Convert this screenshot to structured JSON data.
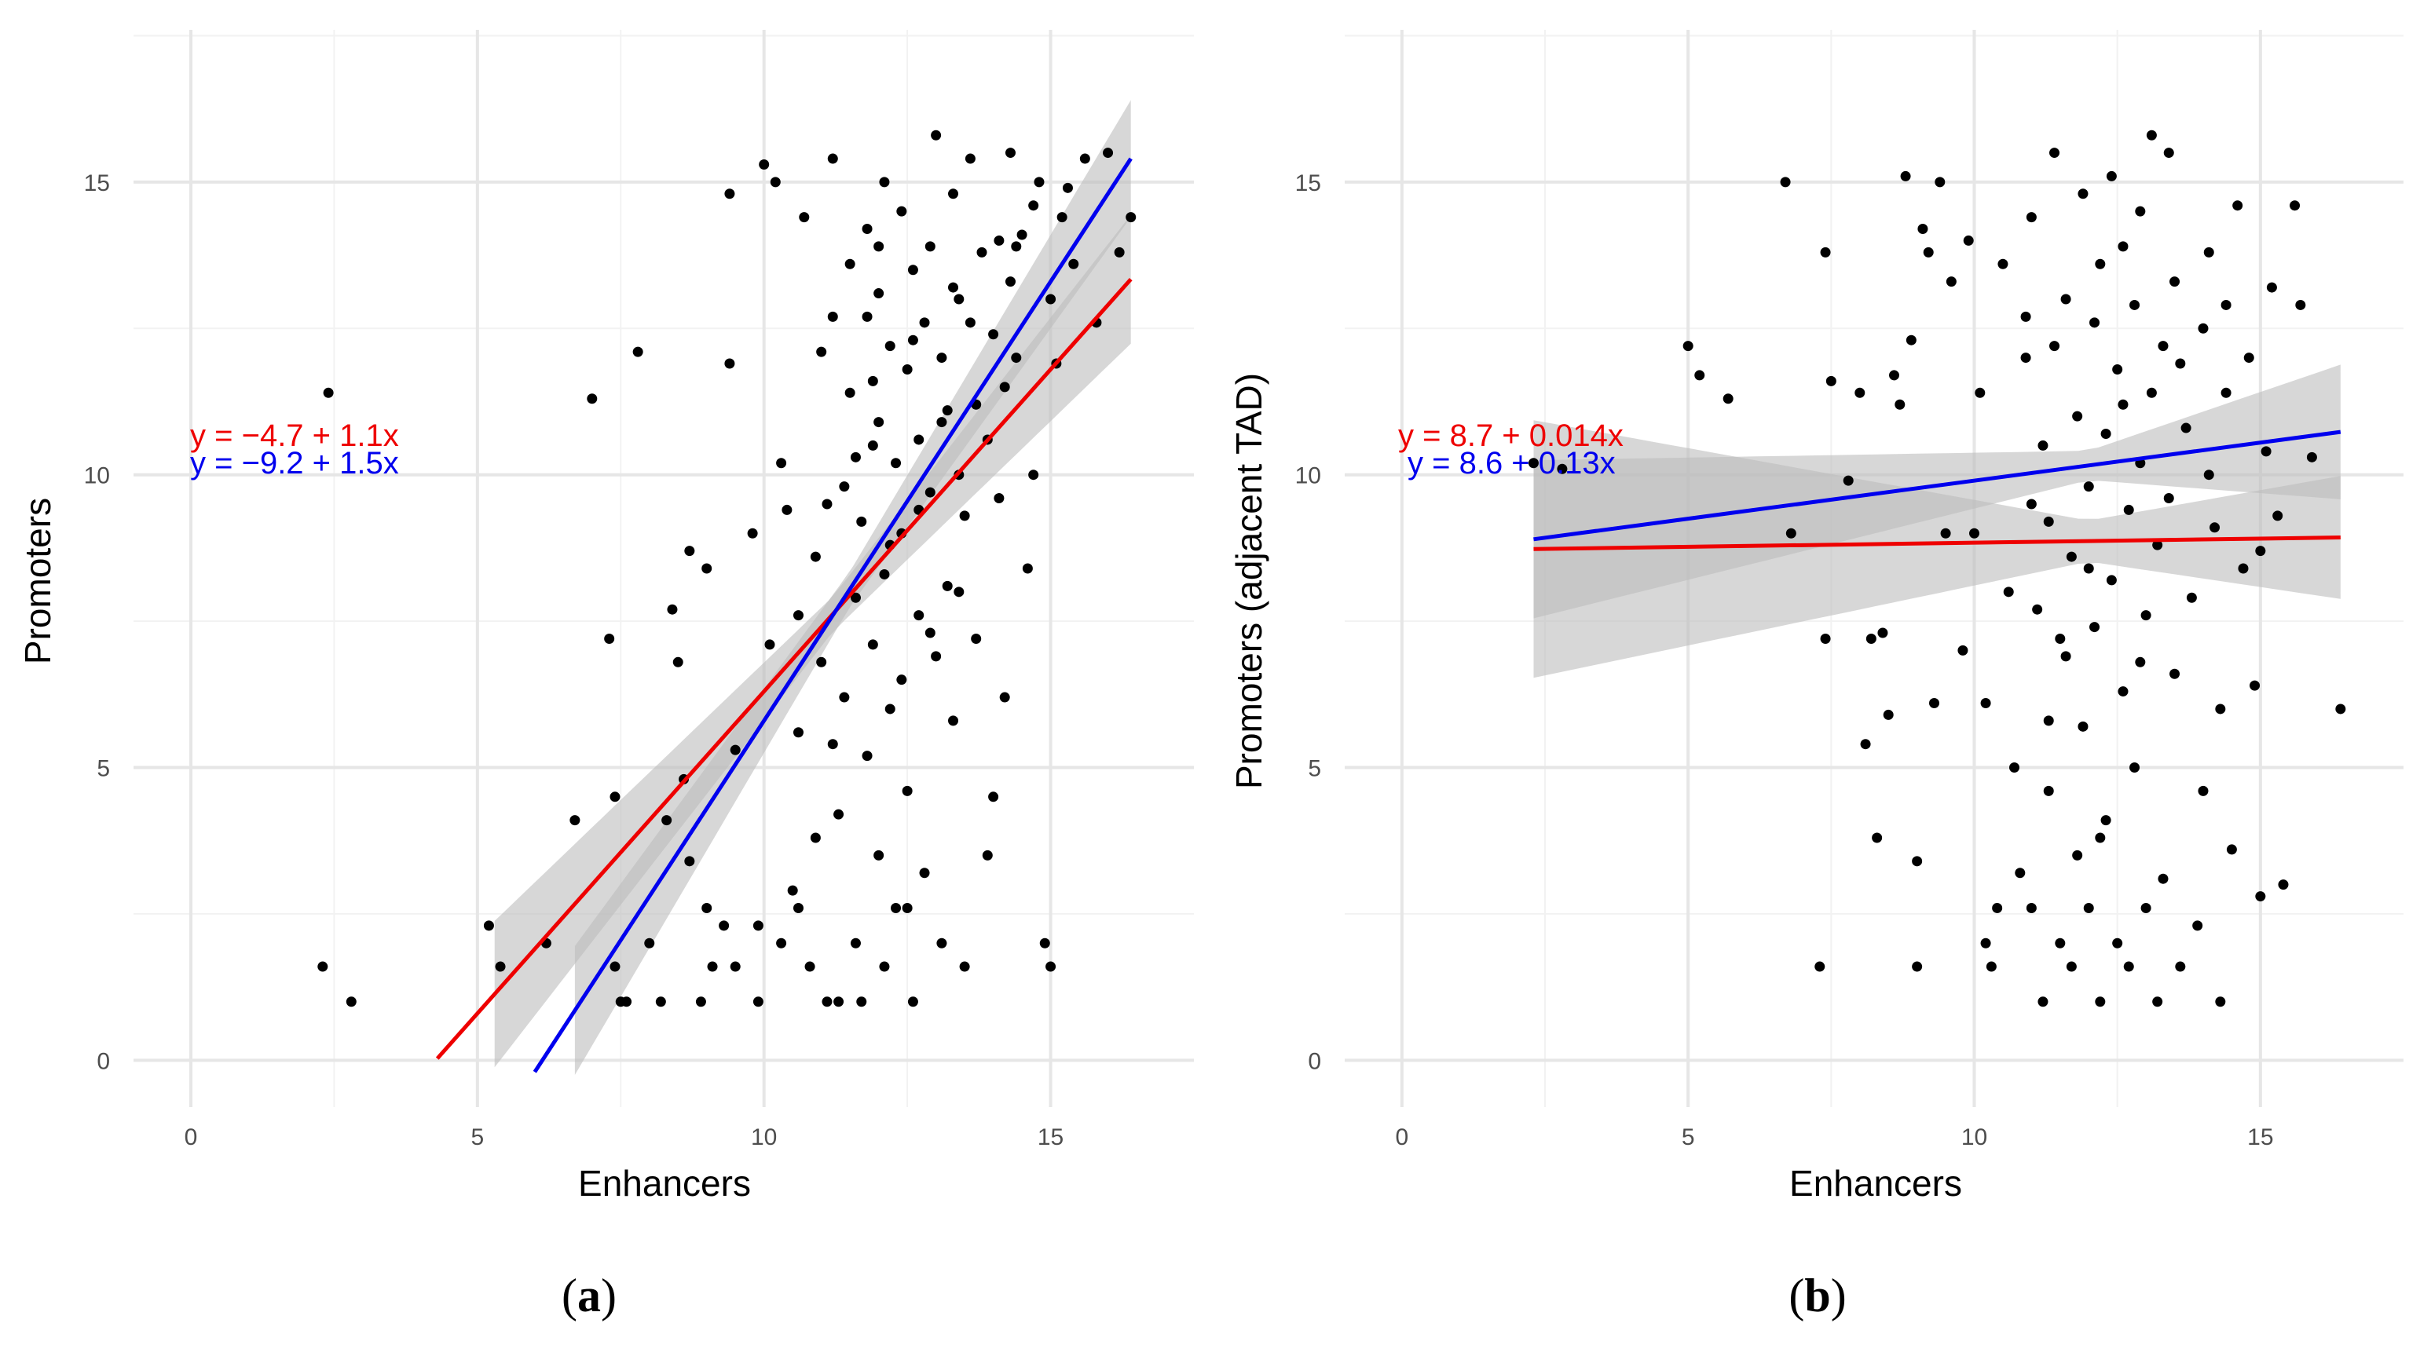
{
  "figure": {
    "panel_a_caption": {
      "open": "(",
      "letter": "a",
      "close": ")"
    },
    "panel_b_caption": {
      "open": "(",
      "letter": "b",
      "close": ")"
    }
  },
  "colors": {
    "red_fit": "#ee0000",
    "blue_fit": "#0000ee",
    "points": "#000000",
    "ribbon": "#bdbdbd",
    "grid_major": "#e6e6e6",
    "grid_minor": "#f2f2f2",
    "tick_text": "#4d4d4d"
  },
  "chart_data": [
    {
      "id": "a",
      "type": "scatter",
      "title": "",
      "xlabel": "Enhancers",
      "ylabel": "Promoters",
      "xlim": [
        -1,
        17.5
      ],
      "ylim": [
        -0.8,
        17.6
      ],
      "x_ticks": [
        0,
        5,
        10,
        15
      ],
      "y_ticks": [
        0,
        5,
        10,
        15
      ],
      "x_tick_labels": [
        "0",
        "5",
        "10",
        "15"
      ],
      "y_tick_labels": [
        "0",
        "5",
        "10",
        "15"
      ],
      "grid": true,
      "equations": [
        {
          "text": "y = −4.7 + 1.1x",
          "color": "red"
        },
        {
          "text": "y = −9.2 + 1.5x",
          "color": "blue"
        }
      ],
      "fits": [
        {
          "name": "red",
          "intercept": -4.7,
          "slope": 1.1,
          "x_range": [
            4.3,
            16.4
          ],
          "ribbon_x": [
            5.3,
            11.2,
            16.4
          ],
          "ribbon_half_width": [
            1.25,
            0.3,
            1.1
          ]
        },
        {
          "name": "blue",
          "intercept": -9.2,
          "slope": 1.5,
          "x_range": [
            6.0,
            16.4
          ],
          "ribbon_x": [
            6.7,
            11.5,
            16.4
          ],
          "ribbon_half_width": [
            1.1,
            0.3,
            1.0
          ]
        }
      ],
      "points": [
        [
          2.3,
          1.6
        ],
        [
          2.8,
          1.0
        ],
        [
          2.4,
          11.4
        ],
        [
          5.2,
          2.3
        ],
        [
          5.4,
          1.6
        ],
        [
          6.2,
          2.0
        ],
        [
          6.7,
          4.1
        ],
        [
          7.0,
          11.3
        ],
        [
          7.3,
          7.2
        ],
        [
          7.4,
          4.5
        ],
        [
          7.5,
          1.0
        ],
        [
          7.6,
          1.0
        ],
        [
          7.8,
          12.1
        ],
        [
          7.4,
          1.6
        ],
        [
          8.0,
          2.0
        ],
        [
          8.2,
          1.0
        ],
        [
          8.3,
          4.1
        ],
        [
          8.5,
          6.8
        ],
        [
          8.4,
          7.7
        ],
        [
          8.6,
          4.8
        ],
        [
          8.7,
          3.4
        ],
        [
          8.7,
          8.7
        ],
        [
          8.9,
          1.0
        ],
        [
          9.0,
          8.4
        ],
        [
          9.0,
          2.6
        ],
        [
          9.1,
          1.6
        ],
        [
          9.3,
          2.3
        ],
        [
          9.4,
          11.9
        ],
        [
          9.4,
          14.8
        ],
        [
          9.5,
          1.6
        ],
        [
          9.5,
          5.3
        ],
        [
          9.8,
          9.0
        ],
        [
          9.9,
          1.0
        ],
        [
          9.9,
          2.3
        ],
        [
          10.0,
          15.3
        ],
        [
          10.1,
          7.1
        ],
        [
          10.2,
          15.0
        ],
        [
          10.3,
          10.2
        ],
        [
          10.3,
          2.0
        ],
        [
          10.5,
          2.9
        ],
        [
          10.6,
          2.6
        ],
        [
          10.6,
          7.6
        ],
        [
          10.7,
          14.4
        ],
        [
          10.8,
          1.6
        ],
        [
          10.9,
          8.6
        ],
        [
          11.0,
          12.1
        ],
        [
          11.1,
          9.5
        ],
        [
          11.1,
          1.0
        ],
        [
          11.2,
          15.4
        ],
        [
          11.2,
          5.4
        ],
        [
          11.3,
          1.0
        ],
        [
          11.4,
          9.8
        ],
        [
          11.4,
          6.2
        ],
        [
          11.5,
          13.6
        ],
        [
          11.5,
          11.4
        ],
        [
          11.6,
          7.9
        ],
        [
          11.6,
          2.0
        ],
        [
          11.7,
          1.0
        ],
        [
          11.7,
          9.2
        ],
        [
          11.8,
          12.7
        ],
        [
          11.8,
          14.2
        ],
        [
          11.9,
          10.5
        ],
        [
          11.9,
          7.1
        ],
        [
          12.0,
          13.1
        ],
        [
          12.0,
          10.9
        ],
        [
          12.0,
          3.5
        ],
        [
          12.1,
          8.3
        ],
        [
          12.1,
          15.0
        ],
        [
          12.2,
          12.2
        ],
        [
          12.2,
          6.0
        ],
        [
          12.3,
          10.2
        ],
        [
          12.3,
          2.6
        ],
        [
          12.4,
          14.5
        ],
        [
          12.4,
          9.0
        ],
        [
          12.5,
          11.8
        ],
        [
          12.5,
          4.6
        ],
        [
          12.6,
          13.5
        ],
        [
          12.6,
          1.0
        ],
        [
          12.7,
          7.6
        ],
        [
          12.7,
          10.6
        ],
        [
          12.8,
          12.6
        ],
        [
          12.8,
          3.2
        ],
        [
          12.9,
          13.9
        ],
        [
          12.9,
          9.7
        ],
        [
          13.0,
          15.8
        ],
        [
          13.0,
          6.9
        ],
        [
          13.1,
          12.0
        ],
        [
          13.1,
          2.0
        ],
        [
          13.2,
          11.1
        ],
        [
          13.2,
          8.1
        ],
        [
          13.3,
          14.8
        ],
        [
          13.3,
          5.8
        ],
        [
          13.4,
          10.0
        ],
        [
          13.4,
          13.0
        ],
        [
          13.5,
          9.3
        ],
        [
          13.5,
          1.6
        ],
        [
          13.6,
          15.4
        ],
        [
          13.6,
          12.6
        ],
        [
          13.7,
          7.2
        ],
        [
          13.7,
          11.2
        ],
        [
          13.8,
          13.8
        ],
        [
          13.9,
          3.5
        ],
        [
          13.9,
          10.6
        ],
        [
          14.0,
          12.4
        ],
        [
          14.0,
          4.5
        ],
        [
          14.1,
          14.0
        ],
        [
          14.1,
          9.6
        ],
        [
          14.2,
          11.5
        ],
        [
          14.2,
          6.2
        ],
        [
          14.3,
          13.3
        ],
        [
          14.3,
          15.5
        ],
        [
          14.4,
          12.0
        ],
        [
          14.5,
          14.1
        ],
        [
          14.6,
          8.4
        ],
        [
          14.7,
          10.0
        ],
        [
          14.8,
          15.0
        ],
        [
          15.0,
          13.0
        ],
        [
          15.1,
          11.9
        ],
        [
          15.2,
          14.4
        ],
        [
          15.4,
          13.6
        ],
        [
          15.6,
          15.4
        ],
        [
          15.8,
          12.6
        ],
        [
          16.0,
          15.5
        ],
        [
          16.2,
          13.8
        ],
        [
          16.4,
          14.4
        ],
        [
          14.9,
          2.0
        ],
        [
          15.0,
          1.6
        ],
        [
          12.1,
          1.6
        ],
        [
          12.5,
          2.6
        ],
        [
          10.9,
          3.8
        ],
        [
          11.3,
          4.2
        ],
        [
          11.8,
          5.2
        ],
        [
          12.4,
          6.5
        ],
        [
          12.9,
          7.3
        ],
        [
          13.4,
          8.0
        ],
        [
          11.0,
          6.8
        ],
        [
          10.6,
          5.6
        ],
        [
          12.2,
          8.8
        ],
        [
          11.6,
          10.3
        ],
        [
          12.7,
          9.4
        ],
        [
          13.1,
          10.9
        ],
        [
          11.9,
          11.6
        ],
        [
          12.6,
          12.3
        ],
        [
          13.3,
          13.2
        ],
        [
          14.4,
          13.9
        ],
        [
          14.7,
          14.6
        ],
        [
          15.3,
          14.9
        ],
        [
          10.4,
          9.4
        ],
        [
          11.2,
          12.7
        ],
        [
          12.0,
          13.9
        ]
      ]
    },
    {
      "id": "b",
      "type": "scatter",
      "title": "",
      "xlabel": "Enhancers",
      "ylabel": "Promoters (adjacent TAD)",
      "xlim": [
        -1,
        17.5
      ],
      "ylim": [
        -0.8,
        17.6
      ],
      "x_ticks": [
        0,
        5,
        10,
        15
      ],
      "y_ticks": [
        0,
        5,
        10,
        15
      ],
      "x_tick_labels": [
        "0",
        "5",
        "10",
        "15"
      ],
      "y_tick_labels": [
        "0",
        "5",
        "10",
        "15"
      ],
      "grid": true,
      "equations": [
        {
          "text": "y = 8.7 + 0.014x",
          "color": "red"
        },
        {
          "text": "y = 8.6 + 0.13x",
          "color": "blue"
        }
      ],
      "fits": [
        {
          "name": "red",
          "intercept": 8.7,
          "slope": 0.014,
          "x_range": [
            2.3,
            16.4
          ],
          "ribbon_x": [
            2.3,
            12.0,
            16.4
          ],
          "ribbon_half_width": [
            2.2,
            0.35,
            1.05
          ]
        },
        {
          "name": "blue",
          "intercept": 8.6,
          "slope": 0.13,
          "x_range": [
            2.3,
            16.4
          ],
          "ribbon_x": [
            2.3,
            12.0,
            16.4
          ],
          "ribbon_half_width": [
            1.35,
            0.25,
            1.15
          ]
        }
      ],
      "points": [
        [
          2.3,
          10.2
        ],
        [
          2.8,
          10.1
        ],
        [
          5.0,
          12.2
        ],
        [
          5.2,
          11.7
        ],
        [
          5.7,
          11.3
        ],
        [
          6.7,
          15.0
        ],
        [
          6.8,
          9.0
        ],
        [
          7.3,
          1.6
        ],
        [
          7.4,
          13.8
        ],
        [
          7.4,
          7.2
        ],
        [
          7.5,
          11.6
        ],
        [
          7.8,
          9.9
        ],
        [
          8.0,
          11.4
        ],
        [
          8.1,
          5.4
        ],
        [
          8.2,
          7.2
        ],
        [
          8.3,
          3.8
        ],
        [
          8.4,
          7.3
        ],
        [
          8.5,
          5.9
        ],
        [
          8.6,
          11.7
        ],
        [
          8.7,
          11.2
        ],
        [
          8.8,
          15.1
        ],
        [
          8.9,
          12.3
        ],
        [
          9.0,
          1.6
        ],
        [
          9.0,
          3.4
        ],
        [
          9.1,
          14.2
        ],
        [
          9.2,
          13.8
        ],
        [
          9.3,
          6.1
        ],
        [
          9.4,
          15.0
        ],
        [
          9.5,
          9.0
        ],
        [
          9.6,
          13.3
        ],
        [
          9.8,
          7.0
        ],
        [
          9.9,
          14.0
        ],
        [
          10.0,
          9.0
        ],
        [
          10.1,
          11.4
        ],
        [
          10.2,
          2.0
        ],
        [
          10.2,
          6.1
        ],
        [
          10.3,
          1.6
        ],
        [
          10.4,
          2.6
        ],
        [
          10.5,
          13.6
        ],
        [
          10.6,
          8.0
        ],
        [
          10.7,
          5.0
        ],
        [
          10.8,
          3.2
        ],
        [
          10.9,
          12.7
        ],
        [
          11.0,
          2.6
        ],
        [
          11.0,
          14.4
        ],
        [
          11.1,
          7.7
        ],
        [
          11.2,
          10.5
        ],
        [
          11.2,
          1.0
        ],
        [
          11.3,
          4.6
        ],
        [
          11.3,
          9.2
        ],
        [
          11.4,
          15.5
        ],
        [
          11.4,
          12.2
        ],
        [
          11.5,
          2.0
        ],
        [
          11.6,
          6.9
        ],
        [
          11.6,
          13.0
        ],
        [
          11.7,
          8.6
        ],
        [
          11.7,
          1.6
        ],
        [
          11.8,
          11.0
        ],
        [
          11.8,
          3.5
        ],
        [
          11.9,
          14.8
        ],
        [
          11.9,
          5.7
        ],
        [
          12.0,
          9.8
        ],
        [
          12.0,
          2.6
        ],
        [
          12.1,
          12.6
        ],
        [
          12.1,
          7.4
        ],
        [
          12.2,
          1.0
        ],
        [
          12.2,
          13.6
        ],
        [
          12.3,
          10.7
        ],
        [
          12.3,
          4.1
        ],
        [
          12.4,
          15.1
        ],
        [
          12.4,
          8.2
        ],
        [
          12.5,
          11.8
        ],
        [
          12.5,
          2.0
        ],
        [
          12.6,
          6.3
        ],
        [
          12.6,
          13.9
        ],
        [
          12.7,
          9.4
        ],
        [
          12.7,
          1.6
        ],
        [
          12.8,
          12.9
        ],
        [
          12.8,
          5.0
        ],
        [
          12.9,
          10.2
        ],
        [
          12.9,
          14.5
        ],
        [
          13.0,
          7.6
        ],
        [
          13.0,
          2.6
        ],
        [
          13.1,
          15.8
        ],
        [
          13.1,
          11.4
        ],
        [
          13.2,
          8.8
        ],
        [
          13.2,
          1.0
        ],
        [
          13.3,
          12.2
        ],
        [
          13.3,
          3.1
        ],
        [
          13.4,
          15.5
        ],
        [
          13.4,
          9.6
        ],
        [
          13.5,
          6.6
        ],
        [
          13.5,
          13.3
        ],
        [
          13.6,
          1.6
        ],
        [
          13.7,
          10.8
        ],
        [
          13.8,
          7.9
        ],
        [
          13.9,
          2.3
        ],
        [
          14.0,
          12.5
        ],
        [
          14.0,
          4.6
        ],
        [
          14.1,
          13.8
        ],
        [
          14.2,
          9.1
        ],
        [
          14.3,
          1.0
        ],
        [
          14.3,
          6.0
        ],
        [
          14.4,
          11.4
        ],
        [
          14.5,
          3.6
        ],
        [
          14.6,
          14.6
        ],
        [
          14.7,
          8.4
        ],
        [
          14.8,
          12.0
        ],
        [
          14.9,
          6.4
        ],
        [
          15.0,
          2.8
        ],
        [
          15.1,
          10.4
        ],
        [
          15.2,
          13.2
        ],
        [
          15.3,
          9.3
        ],
        [
          15.4,
          3.0
        ],
        [
          15.6,
          14.6
        ],
        [
          15.7,
          12.9
        ],
        [
          15.9,
          10.3
        ],
        [
          16.4,
          6.0
        ],
        [
          15.0,
          8.7
        ],
        [
          14.1,
          10.0
        ],
        [
          12.6,
          11.2
        ],
        [
          11.0,
          9.5
        ],
        [
          11.5,
          7.2
        ],
        [
          10.9,
          12.0
        ],
        [
          12.0,
          8.4
        ],
        [
          12.9,
          6.8
        ],
        [
          13.6,
          11.9
        ],
        [
          14.4,
          12.9
        ],
        [
          11.3,
          5.8
        ],
        [
          12.2,
          3.8
        ]
      ]
    }
  ]
}
